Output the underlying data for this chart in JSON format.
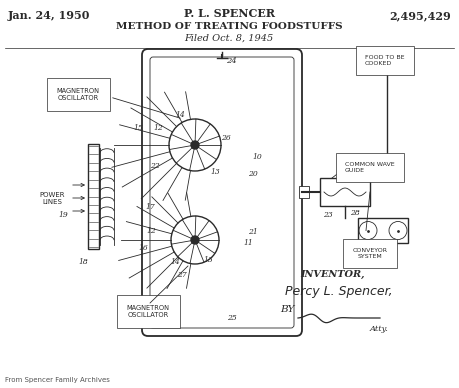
{
  "title_left": "Jan. 24, 1950",
  "title_center": "P. L. SPENCER",
  "title_patent": "2,495,429",
  "subtitle": "METHOD OF TREATING FOODSTUFFS",
  "filed": "Filed Oct. 8, 1945",
  "footer": "From Spencer Family Archives",
  "bg_color": "#ffffff",
  "line_color": "#2a2a2a",
  "fig_w": 4.59,
  "fig_h": 3.88,
  "dpi": 100
}
